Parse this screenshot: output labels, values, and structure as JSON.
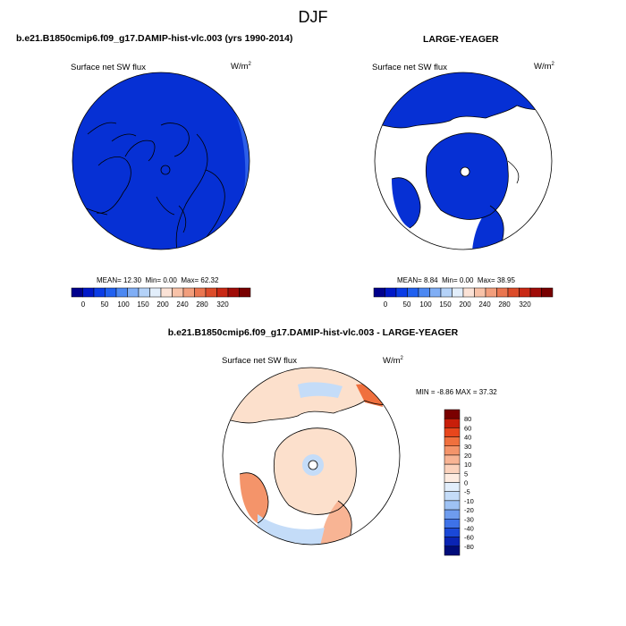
{
  "figure": {
    "title": "DJF",
    "panel_left_title": "b.e21.B1850cmip6.f09_g17.DAMIP-hist-vlc.003 (yrs 1990-2014)",
    "panel_right_title": "LARGE-YEAGER",
    "panel_diff_title": "b.e21.B1850cmip6.f09_g17.DAMIP-hist-vlc.003 - LARGE-YEAGER"
  },
  "chart_data": [
    {
      "type": "heatmap",
      "projection": "polar stereographic (Arctic)",
      "variable": "Surface net SW flux",
      "units_base": "W/m",
      "units_exp": "2",
      "stats": {
        "mean_label": "MEAN=",
        "mean": "12.30",
        "min_label": "Min=",
        "min": "0.00",
        "max_label": "Max=",
        "max": "62.32"
      },
      "colorbar": {
        "orientation": "horizontal",
        "tick_labels": [
          "0",
          "50",
          "100",
          "150",
          "200",
          "240",
          "280",
          "320"
        ],
        "colors": [
          "#00008c",
          "#0018c8",
          "#0a3ce6",
          "#2060f0",
          "#4c88f2",
          "#80aef5",
          "#b4d2f8",
          "#e2eefb",
          "#fbe2d6",
          "#f8c2a8",
          "#f29e7c",
          "#ea7650",
          "#dc4c2a",
          "#c82814",
          "#a00c08",
          "#780000"
        ]
      },
      "field_color": "#0630d4"
    },
    {
      "type": "heatmap",
      "projection": "polar stereographic (Arctic)",
      "variable": "Surface net SW flux",
      "units_base": "W/m",
      "units_exp": "2",
      "stats": {
        "mean_label": "MEAN=",
        "mean": "8.84",
        "min_label": "Min=",
        "min": "0.00",
        "max_label": "Max=",
        "max": "38.95"
      },
      "colorbar": {
        "orientation": "horizontal",
        "tick_labels": [
          "0",
          "50",
          "100",
          "150",
          "200",
          "240",
          "280",
          "320"
        ],
        "colors": [
          "#00008c",
          "#0018c8",
          "#0a3ce6",
          "#2060f0",
          "#4c88f2",
          "#80aef5",
          "#b4d2f8",
          "#e2eefb",
          "#fbe2d6",
          "#f8c2a8",
          "#f29e7c",
          "#ea7650",
          "#dc4c2a",
          "#c82814",
          "#a00c08",
          "#780000"
        ]
      },
      "field_color": "#0630d4",
      "land_masked": true
    },
    {
      "type": "heatmap",
      "projection": "polar stereographic (Arctic)",
      "variable": "Surface net SW flux",
      "units_base": "W/m",
      "units_exp": "2",
      "stats": {
        "min_label": "MIN =",
        "min": "-8.86",
        "max_label": "MAX =",
        "max": "37.32"
      },
      "colorbar": {
        "orientation": "vertical",
        "tick_labels": [
          "80",
          "60",
          "40",
          "30",
          "20",
          "10",
          "5",
          "0",
          "-5",
          "-10",
          "-20",
          "-30",
          "-40",
          "-60",
          "-80"
        ],
        "colors": [
          "#7a0000",
          "#c81e0a",
          "#e8461c",
          "#f0703e",
          "#f4946a",
          "#f8b494",
          "#fbd2bc",
          "#fdebe0",
          "#e2eefb",
          "#c4dcf8",
          "#9ec2f4",
          "#6e9cee",
          "#3e72e8",
          "#1a48d8",
          "#0a24b4",
          "#000c7a"
        ]
      },
      "field_color": "#fce0cc"
    }
  ]
}
